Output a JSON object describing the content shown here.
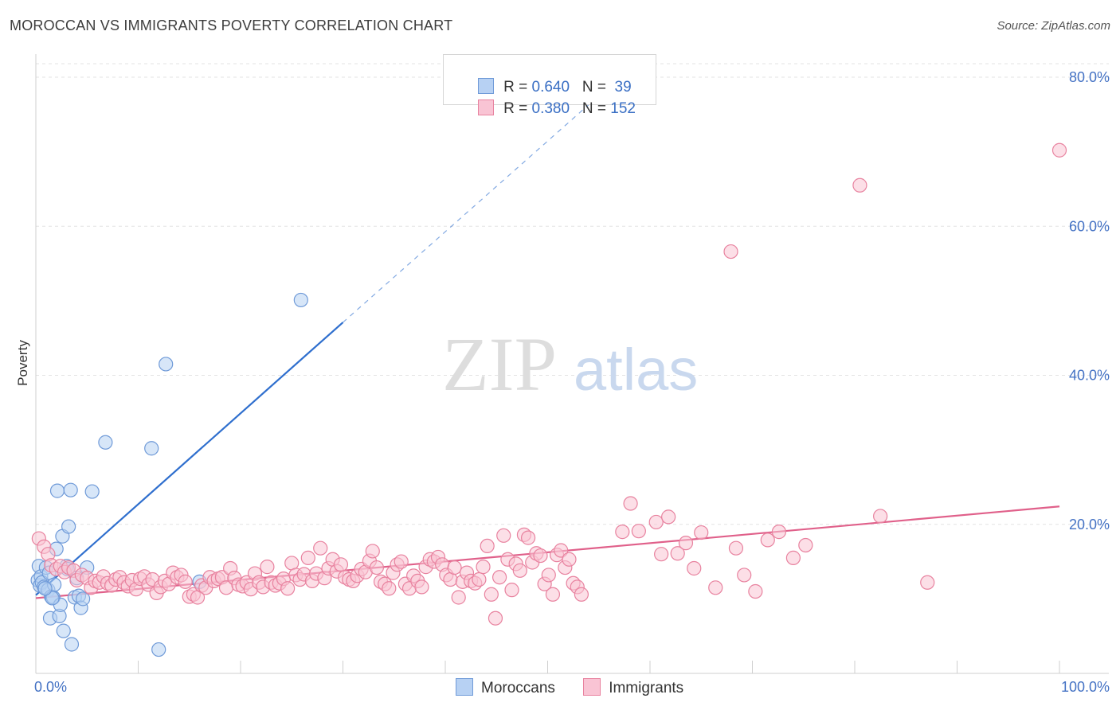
{
  "title": "MOROCCAN VS IMMIGRANTS POVERTY CORRELATION CHART",
  "source": "Source: ZipAtlas.com",
  "watermark": {
    "zip": "ZIP",
    "atlas": "atlas"
  },
  "legend_top": [
    {
      "r_label": "R = ",
      "r_value": "0.640",
      "n_label": "N = ",
      "n_value": " 39",
      "fill": "#b7d1f3",
      "stroke": "#6f9ad8"
    },
    {
      "r_label": "R = ",
      "r_value": "0.380",
      "n_label": "N = ",
      "n_value": "152",
      "fill": "#f9c4d4",
      "stroke": "#e8829f"
    }
  ],
  "legend_bottom": [
    {
      "label": "Moroccans",
      "fill": "#b7d1f3",
      "stroke": "#6f9ad8"
    },
    {
      "label": "Immigrants",
      "fill": "#f9c4d4",
      "stroke": "#e8829f"
    }
  ],
  "chart_data": {
    "type": "scatter",
    "title": "MOROCCAN VS IMMIGRANTS POVERTY CORRELATION CHART",
    "xlabel": "",
    "ylabel": "Poverty",
    "xlim": [
      0,
      100
    ],
    "ylim": [
      0,
      80
    ],
    "x_tick_labels": [
      "0.0%",
      "100.0%"
    ],
    "y_tick_labels": [
      "20.0%",
      "40.0%",
      "60.0%",
      "80.0%"
    ],
    "y_ticks": [
      20,
      40,
      60,
      80
    ],
    "grid": true,
    "legend": "top-center",
    "series": [
      {
        "name": "Moroccans",
        "color": "#6f9ad8",
        "fill": "#b7d1f3",
        "line_color": "#2f6fce",
        "trend": {
          "x0": 0,
          "y0": 10.5,
          "x1": 30,
          "y1": 47.1,
          "dash_to_x": 54,
          "dash_to_y": 76.3
        },
        "points": [
          [
            0.2,
            12.5
          ],
          [
            0.3,
            14.4
          ],
          [
            0.4,
            11.8
          ],
          [
            0.5,
            13.0
          ],
          [
            0.6,
            12.2
          ],
          [
            0.8,
            11.6
          ],
          [
            1.0,
            14.2
          ],
          [
            1.2,
            11.2
          ],
          [
            1.3,
            13.5
          ],
          [
            1.4,
            7.4
          ],
          [
            1.5,
            10.3
          ],
          [
            1.7,
            10.2
          ],
          [
            1.8,
            11.9
          ],
          [
            2.0,
            16.7
          ],
          [
            2.1,
            24.5
          ],
          [
            2.3,
            7.7
          ],
          [
            2.4,
            9.2
          ],
          [
            2.6,
            18.4
          ],
          [
            2.7,
            5.7
          ],
          [
            3.0,
            14.4
          ],
          [
            3.1,
            14.0
          ],
          [
            3.2,
            19.7
          ],
          [
            3.4,
            24.6
          ],
          [
            3.5,
            3.9
          ],
          [
            3.8,
            10.2
          ],
          [
            4.0,
            12.8
          ],
          [
            4.2,
            10.4
          ],
          [
            4.4,
            8.8
          ],
          [
            4.6,
            10.0
          ],
          [
            5.0,
            14.2
          ],
          [
            5.5,
            24.4
          ],
          [
            6.8,
            31.0
          ],
          [
            11.3,
            30.2
          ],
          [
            12.0,
            3.2
          ],
          [
            12.7,
            41.5
          ],
          [
            16.0,
            12.3
          ],
          [
            25.9,
            50.1
          ],
          [
            1.6,
            10.1
          ],
          [
            0.9,
            11.4
          ]
        ]
      },
      {
        "name": "Immigrants",
        "color": "#e8829f",
        "fill": "#f9c4d4",
        "line_color": "#e0608a",
        "trend": {
          "x0": 0,
          "y0": 10.1,
          "x1": 100,
          "y1": 22.4
        },
        "points": [
          [
            0.3,
            18.1
          ],
          [
            0.8,
            17.0
          ],
          [
            1.2,
            16.0
          ],
          [
            1.5,
            14.5
          ],
          [
            2.0,
            14.0
          ],
          [
            2.4,
            14.4
          ],
          [
            2.8,
            13.6
          ],
          [
            3.2,
            14.2
          ],
          [
            3.7,
            13.8
          ],
          [
            4.0,
            12.5
          ],
          [
            4.5,
            13.2
          ],
          [
            5.0,
            12.8
          ],
          [
            5.4,
            11.5
          ],
          [
            5.8,
            12.4
          ],
          [
            6.2,
            12.2
          ],
          [
            6.6,
            13.0
          ],
          [
            7.0,
            12.1
          ],
          [
            7.4,
            11.8
          ],
          [
            7.8,
            12.6
          ],
          [
            8.2,
            12.9
          ],
          [
            8.6,
            12.2
          ],
          [
            9.0,
            11.7
          ],
          [
            9.4,
            12.5
          ],
          [
            9.8,
            11.3
          ],
          [
            10.2,
            12.7
          ],
          [
            10.6,
            13.0
          ],
          [
            11.0,
            11.9
          ],
          [
            11.4,
            12.6
          ],
          [
            11.8,
            10.8
          ],
          [
            12.2,
            11.6
          ],
          [
            12.6,
            12.4
          ],
          [
            13.0,
            12.0
          ],
          [
            13.4,
            13.5
          ],
          [
            13.8,
            12.9
          ],
          [
            14.2,
            13.2
          ],
          [
            14.6,
            12.3
          ],
          [
            15.0,
            10.3
          ],
          [
            15.4,
            10.6
          ],
          [
            15.8,
            10.2
          ],
          [
            16.2,
            11.8
          ],
          [
            16.6,
            11.5
          ],
          [
            17.0,
            12.9
          ],
          [
            17.4,
            12.4
          ],
          [
            17.8,
            12.7
          ],
          [
            18.2,
            12.9
          ],
          [
            18.6,
            11.5
          ],
          [
            19.0,
            14.1
          ],
          [
            19.4,
            12.8
          ],
          [
            19.8,
            11.9
          ],
          [
            20.2,
            11.7
          ],
          [
            20.6,
            12.2
          ],
          [
            21.0,
            11.3
          ],
          [
            21.4,
            13.4
          ],
          [
            21.8,
            12.2
          ],
          [
            22.2,
            11.6
          ],
          [
            22.6,
            14.3
          ],
          [
            23.0,
            12.2
          ],
          [
            23.4,
            11.8
          ],
          [
            23.8,
            12.1
          ],
          [
            24.2,
            12.7
          ],
          [
            24.6,
            11.4
          ],
          [
            25.0,
            14.8
          ],
          [
            25.4,
            13.2
          ],
          [
            25.8,
            12.6
          ],
          [
            26.2,
            13.3
          ],
          [
            26.6,
            15.5
          ],
          [
            27.0,
            12.4
          ],
          [
            27.4,
            13.4
          ],
          [
            27.8,
            16.8
          ],
          [
            28.2,
            12.8
          ],
          [
            28.6,
            14.1
          ],
          [
            29.0,
            15.3
          ],
          [
            29.4,
            13.7
          ],
          [
            29.8,
            14.6
          ],
          [
            30.2,
            12.9
          ],
          [
            30.6,
            12.6
          ],
          [
            31.0,
            12.4
          ],
          [
            31.4,
            13.1
          ],
          [
            31.8,
            14.0
          ],
          [
            32.2,
            13.6
          ],
          [
            32.6,
            15.1
          ],
          [
            32.9,
            16.4
          ],
          [
            33.3,
            14.2
          ],
          [
            33.7,
            12.3
          ],
          [
            34.1,
            12.0
          ],
          [
            34.5,
            11.4
          ],
          [
            34.9,
            13.5
          ],
          [
            35.3,
            14.6
          ],
          [
            35.7,
            15.0
          ],
          [
            36.1,
            12.0
          ],
          [
            36.5,
            11.4
          ],
          [
            36.9,
            13.1
          ],
          [
            37.3,
            12.4
          ],
          [
            37.7,
            11.6
          ],
          [
            38.1,
            14.3
          ],
          [
            38.5,
            15.3
          ],
          [
            38.9,
            15.0
          ],
          [
            39.3,
            15.6
          ],
          [
            39.7,
            14.6
          ],
          [
            40.1,
            13.2
          ],
          [
            40.5,
            12.6
          ],
          [
            40.9,
            14.2
          ],
          [
            41.3,
            10.2
          ],
          [
            41.7,
            12.3
          ],
          [
            42.1,
            13.5
          ],
          [
            42.5,
            12.4
          ],
          [
            42.9,
            12.1
          ],
          [
            43.3,
            12.6
          ],
          [
            43.7,
            14.3
          ],
          [
            44.1,
            17.1
          ],
          [
            44.5,
            10.6
          ],
          [
            44.9,
            7.4
          ],
          [
            45.3,
            12.9
          ],
          [
            45.7,
            18.5
          ],
          [
            46.1,
            15.3
          ],
          [
            46.5,
            11.2
          ],
          [
            46.9,
            14.7
          ],
          [
            47.3,
            13.8
          ],
          [
            47.7,
            18.6
          ],
          [
            48.1,
            18.2
          ],
          [
            48.5,
            14.9
          ],
          [
            48.9,
            16.1
          ],
          [
            49.3,
            15.8
          ],
          [
            49.7,
            12.0
          ],
          [
            50.1,
            13.2
          ],
          [
            50.5,
            10.6
          ],
          [
            50.9,
            15.9
          ],
          [
            51.3,
            16.5
          ],
          [
            51.7,
            14.2
          ],
          [
            52.1,
            15.3
          ],
          [
            52.5,
            12.1
          ],
          [
            52.9,
            11.6
          ],
          [
            53.3,
            10.6
          ],
          [
            58.1,
            22.8
          ],
          [
            57.3,
            19.0
          ],
          [
            58.9,
            19.1
          ],
          [
            60.6,
            20.3
          ],
          [
            62.7,
            16.1
          ],
          [
            61.1,
            16.0
          ],
          [
            63.5,
            17.5
          ],
          [
            64.3,
            14.1
          ],
          [
            65.0,
            18.9
          ],
          [
            66.4,
            11.5
          ],
          [
            68.4,
            16.8
          ],
          [
            69.2,
            13.2
          ],
          [
            70.3,
            11.0
          ],
          [
            71.5,
            17.9
          ],
          [
            72.6,
            19.0
          ],
          [
            74.0,
            15.5
          ],
          [
            75.2,
            17.2
          ],
          [
            80.5,
            65.5
          ],
          [
            100.0,
            70.2
          ],
          [
            87.1,
            12.2
          ],
          [
            82.5,
            21.1
          ],
          [
            61.8,
            21.0
          ],
          [
            67.9,
            56.6
          ]
        ]
      }
    ]
  }
}
